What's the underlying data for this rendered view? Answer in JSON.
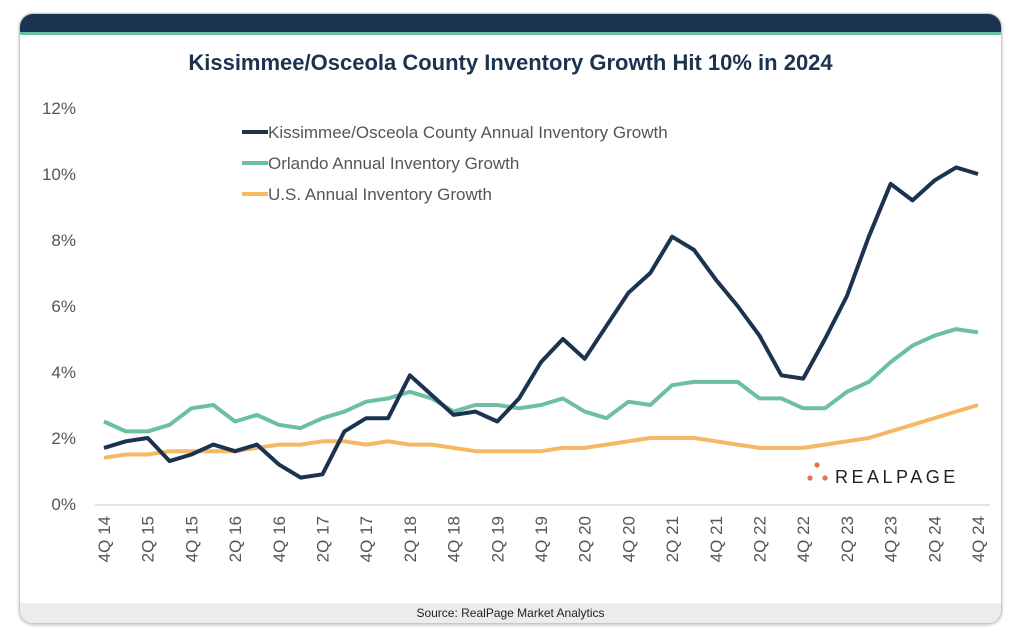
{
  "chart_data": {
    "type": "line",
    "title": "Kissimmee/Osceola County Inventory Growth Hit 10% in 2024",
    "source": "Source: RealPage Market Analytics",
    "logo": "REALPAGE",
    "ylim": [
      0,
      12
    ],
    "yticks": [
      "0%",
      "2%",
      "4%",
      "6%",
      "8%",
      "10%",
      "12%"
    ],
    "ytick_values": [
      0,
      2,
      4,
      6,
      8,
      10,
      12
    ],
    "grid": false,
    "legend_placement": "top-left",
    "x": [
      "4Q14",
      "1Q15",
      "2Q15",
      "3Q15",
      "4Q15",
      "1Q16",
      "2Q16",
      "3Q16",
      "4Q16",
      "1Q17",
      "2Q17",
      "3Q17",
      "4Q17",
      "1Q18",
      "2Q18",
      "3Q18",
      "4Q18",
      "1Q19",
      "2Q19",
      "3Q19",
      "4Q19",
      "1Q20",
      "2Q20",
      "3Q20",
      "4Q20",
      "1Q21",
      "2Q21",
      "3Q21",
      "4Q21",
      "1Q22",
      "2Q22",
      "3Q22",
      "4Q22",
      "1Q23",
      "2Q23",
      "3Q23",
      "4Q23",
      "1Q24",
      "2Q24",
      "3Q24",
      "4Q24"
    ],
    "xtick_labels": [
      "4Q 14",
      "2Q 15",
      "4Q 15",
      "2Q 16",
      "4Q 16",
      "2Q 17",
      "4Q 17",
      "2Q 18",
      "4Q 18",
      "2Q 19",
      "4Q 19",
      "2Q 20",
      "4Q 20",
      "2Q 21",
      "4Q 21",
      "2Q 22",
      "4Q 22",
      "2Q 23",
      "4Q 23",
      "2Q 24",
      "4Q 24"
    ],
    "series": [
      {
        "name": "Kissimmee/Osceola County Annual Inventory Growth",
        "color": "#1c3350",
        "values": [
          1.7,
          1.9,
          2.0,
          1.3,
          1.5,
          1.8,
          1.6,
          1.8,
          1.2,
          0.8,
          0.9,
          2.2,
          2.6,
          2.6,
          3.9,
          3.3,
          2.7,
          2.8,
          2.5,
          3.2,
          4.3,
          5.0,
          4.4,
          5.4,
          6.4,
          7.0,
          8.1,
          7.7,
          6.8,
          6.0,
          5.1,
          3.9,
          3.8,
          5.0,
          6.3,
          8.1,
          9.7,
          9.2,
          9.8,
          10.2,
          10.0
        ]
      },
      {
        "name": "Orlando Annual Inventory Growth",
        "color": "#6cbfa3",
        "values": [
          2.5,
          2.2,
          2.2,
          2.4,
          2.9,
          3.0,
          2.5,
          2.7,
          2.4,
          2.3,
          2.6,
          2.8,
          3.1,
          3.2,
          3.4,
          3.2,
          2.8,
          3.0,
          3.0,
          2.9,
          3.0,
          3.2,
          2.8,
          2.6,
          3.1,
          3.0,
          3.6,
          3.7,
          3.7,
          3.7,
          3.2,
          3.2,
          2.9,
          2.9,
          3.4,
          3.7,
          4.3,
          4.8,
          5.1,
          5.3,
          5.2
        ]
      },
      {
        "name": "U.S. Annual Inventory Growth",
        "color": "#f5b865",
        "values": [
          1.4,
          1.5,
          1.5,
          1.6,
          1.6,
          1.6,
          1.6,
          1.7,
          1.8,
          1.8,
          1.9,
          1.9,
          1.8,
          1.9,
          1.8,
          1.8,
          1.7,
          1.6,
          1.6,
          1.6,
          1.6,
          1.7,
          1.7,
          1.8,
          1.9,
          2.0,
          2.0,
          2.0,
          1.9,
          1.8,
          1.7,
          1.7,
          1.7,
          1.8,
          1.9,
          2.0,
          2.2,
          2.4,
          2.6,
          2.8,
          3.0
        ]
      }
    ],
    "logo_color": "#e8704f"
  }
}
